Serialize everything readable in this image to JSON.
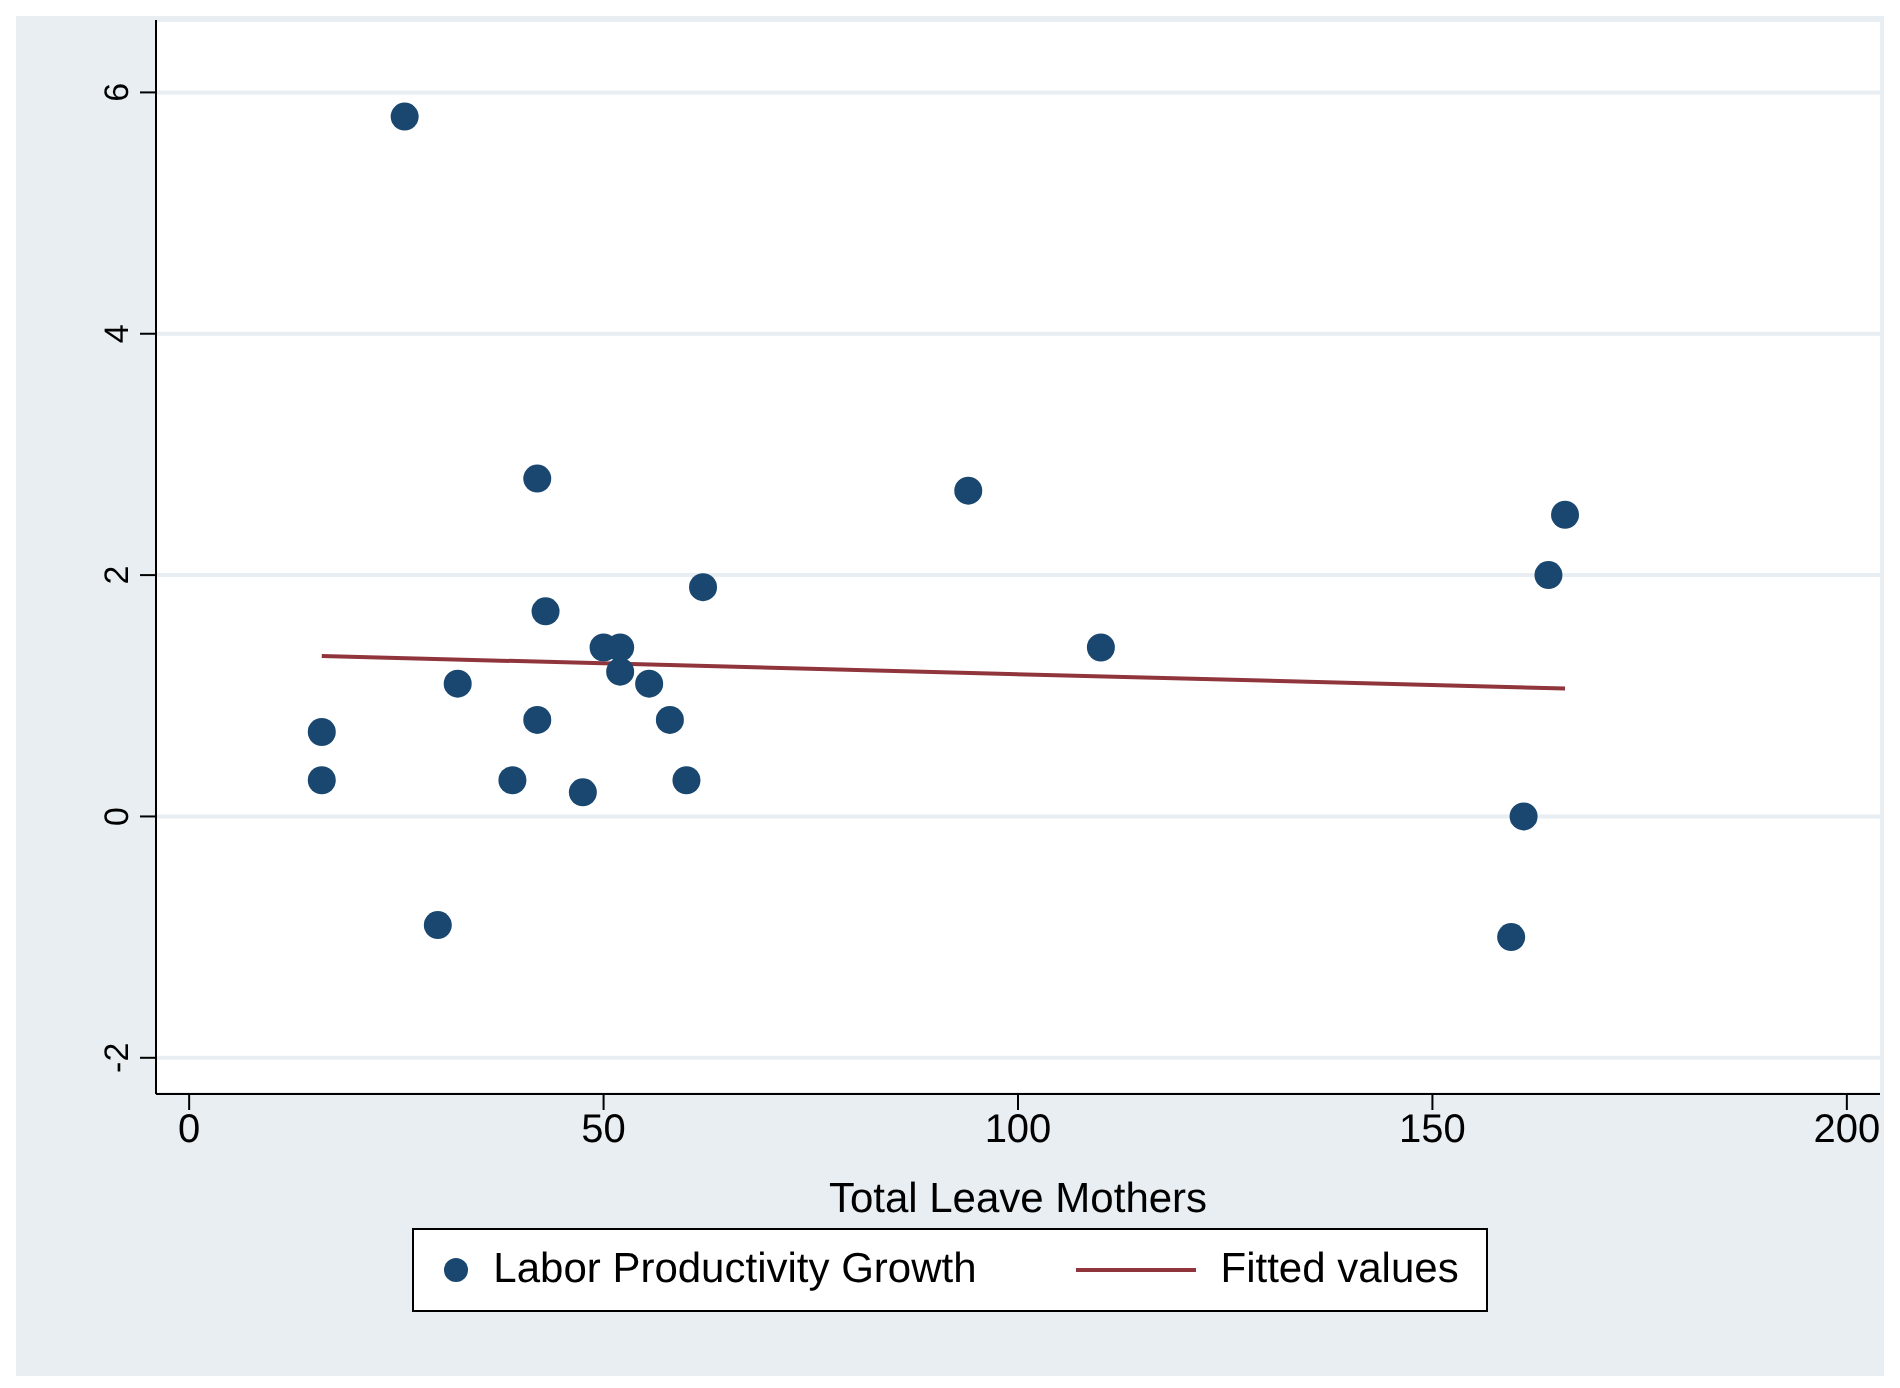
{
  "chart_data": {
    "type": "scatter",
    "xlabel": "Total Leave Mothers",
    "xlim": [
      -4,
      204
    ],
    "xticks": [
      0,
      50,
      100,
      150,
      200
    ],
    "ylim": [
      -2.3,
      6.6
    ],
    "yticks": [
      -2,
      0,
      2,
      4,
      6
    ],
    "grid": "y",
    "legend": "bottom",
    "series": [
      {
        "name": "Labor Productivity Growth",
        "color": "#1a476f",
        "marker": "circle",
        "x": [
          16,
          16,
          26,
          30,
          32.4,
          39,
          42,
          42,
          43,
          47.5,
          50,
          52,
          52,
          55.5,
          58,
          60,
          62,
          94,
          110,
          159.5,
          161,
          164,
          166
        ],
        "values": [
          0.3,
          0.7,
          5.8,
          -0.9,
          1.1,
          0.3,
          2.8,
          0.8,
          1.7,
          0.2,
          1.4,
          1.4,
          1.2,
          1.1,
          0.8,
          0.3,
          1.9,
          2.7,
          1.4,
          -1.0,
          0.0,
          2.0,
          2.5
        ]
      },
      {
        "name": "Fitted values",
        "type": "line",
        "color": "#90353b",
        "marker": "none",
        "x": [
          16,
          166
        ],
        "values": [
          1.33,
          1.06
        ]
      }
    ]
  }
}
